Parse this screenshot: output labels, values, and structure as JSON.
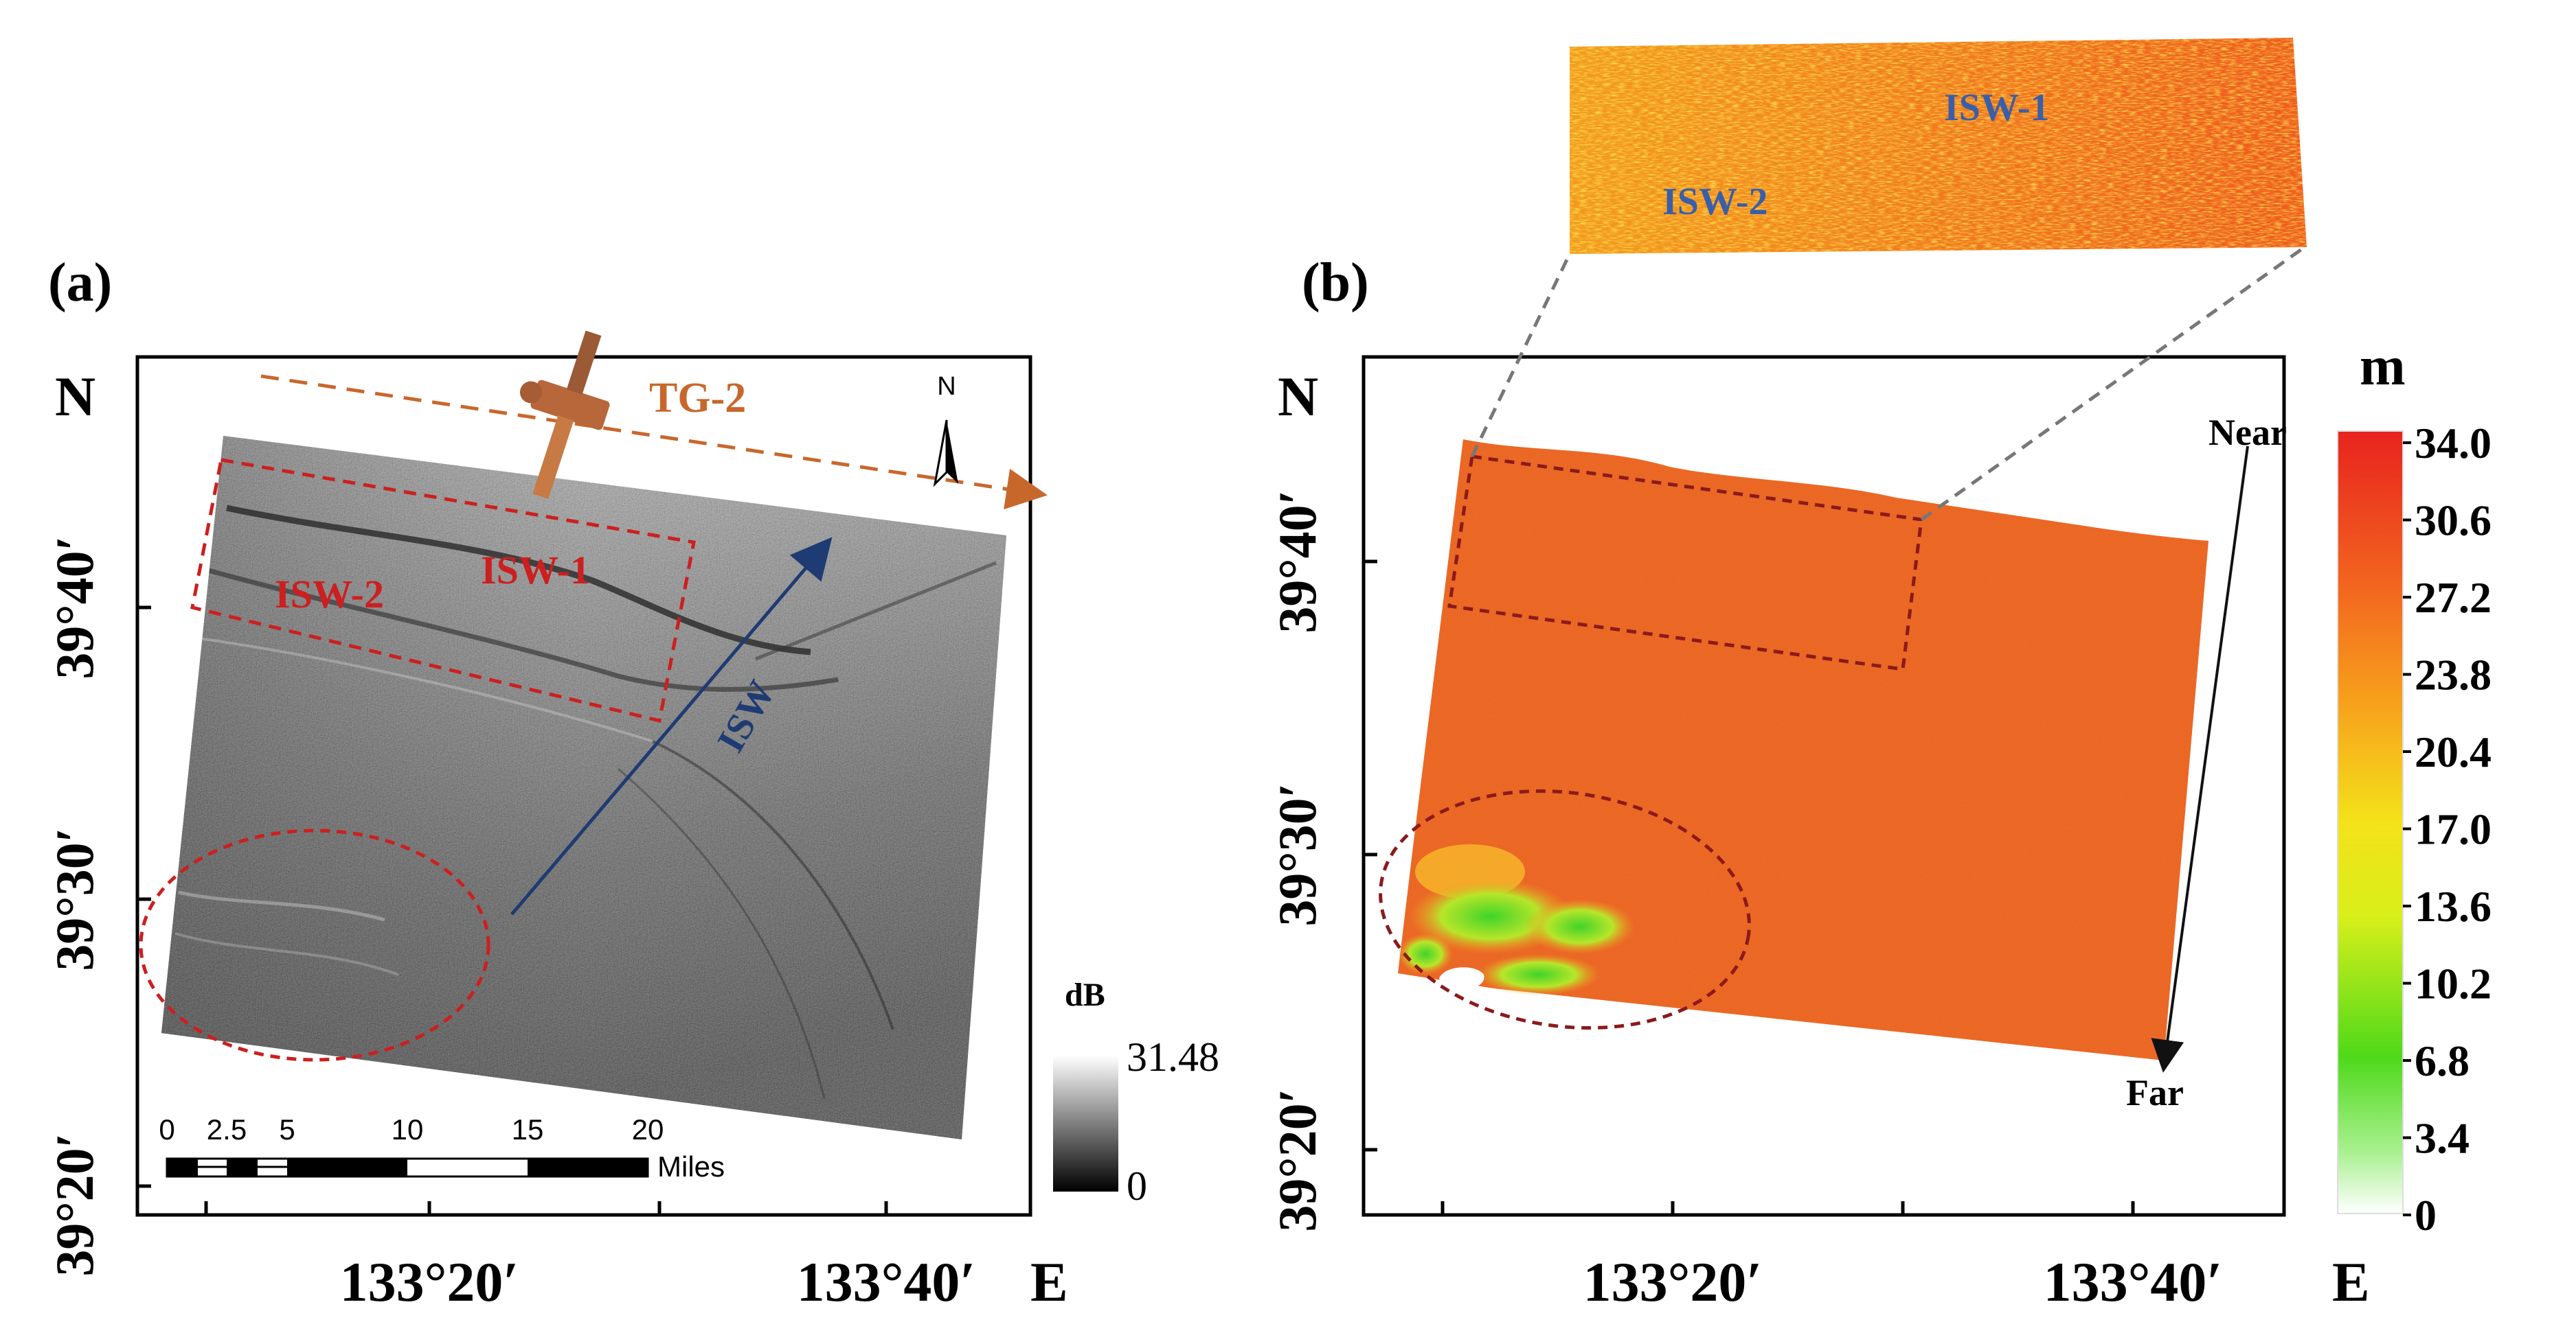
{
  "panel_a": {
    "label": "(a)",
    "north_label": "N",
    "east_label": "E",
    "lat_ticks": [
      "39°40′",
      "39°30′",
      "39°20′"
    ],
    "lon_ticks": [
      "133°20′",
      "133°40′"
    ],
    "satellite_label": "TG-2",
    "north_arrow_label": "N",
    "isw_labels": [
      "ISW-1",
      "ISW-2"
    ],
    "propagation_label": "ISW",
    "colorbar": {
      "unit": "dB",
      "max": "31.48",
      "min": "0"
    },
    "scalebar": {
      "ticks": [
        "0",
        "2.5",
        "5",
        "10",
        "15",
        "20"
      ],
      "unit": "Miles"
    },
    "colors": {
      "annotation": "#cc1f1f",
      "satellite": "#c8672c",
      "propagation": "#1f3b73"
    }
  },
  "panel_b": {
    "label": "(b)",
    "north_label": "N",
    "east_label": "E",
    "lat_ticks": [
      "39°40′",
      "39°30′",
      "39°20′"
    ],
    "lon_ticks": [
      "133°20′",
      "133°40′"
    ],
    "range_near": "Near",
    "range_far": "Far",
    "inset_labels": [
      "ISW-1",
      "ISW-2"
    ],
    "colorbar": {
      "unit": "m",
      "ticks": [
        "34.0",
        "30.6",
        "27.2",
        "23.8",
        "20.4",
        "17.0",
        "13.6",
        "10.2",
        "6.8",
        "3.4",
        "0"
      ]
    },
    "colors": {
      "annotation": "#8b1a1a",
      "inset_text": "#3a5fa8",
      "map_fill": "#ee6a22"
    }
  }
}
